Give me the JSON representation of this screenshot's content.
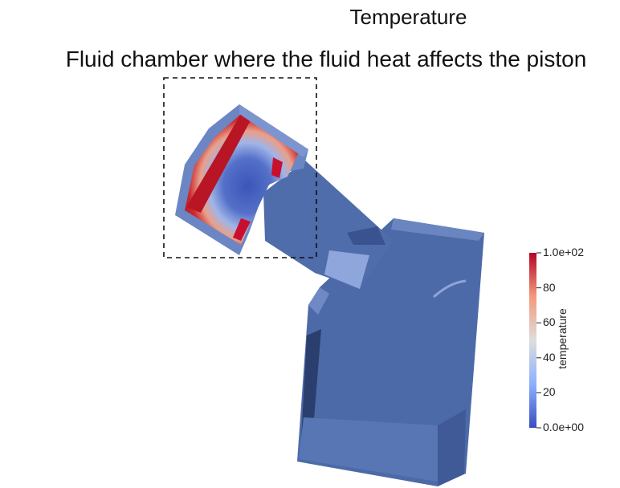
{
  "header": {
    "title": "Temperature",
    "subtitle": "Fluid chamber where the fluid heat affects the piston"
  },
  "colorbar": {
    "label": "temperature",
    "ticks": [
      "1.0e+02",
      "80",
      "60",
      "40",
      "20",
      "0.0e+00"
    ],
    "range": [
      0,
      100
    ],
    "colors": {
      "high": "#b40426",
      "mid": "#dddddd",
      "low": "#3b4cc0"
    }
  },
  "model": {
    "body_color": "#4d6aa8",
    "hot_color": "#c8102e"
  }
}
